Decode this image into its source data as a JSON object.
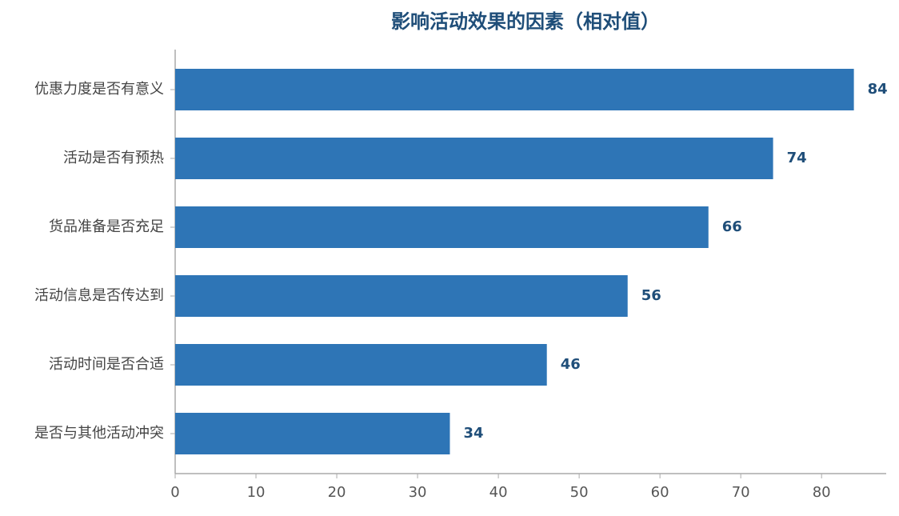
{
  "chart_data": {
    "type": "barh",
    "title": "影响活动效果的因素（相对值）",
    "categories": [
      "优惠力度是否有意义",
      "活动是否有预热",
      "货品准备是否充足",
      "活动信息是否传达到",
      "活动时间是否合适",
      "是否与其他活动冲突"
    ],
    "values": [
      84,
      74,
      66,
      56,
      46,
      34
    ],
    "color": "#2e75b6",
    "label_color": "#1f4e79",
    "title_color": "#1f4e79",
    "xlim": [
      0,
      88
    ],
    "xticks": [
      0,
      10,
      20,
      30,
      40,
      50,
      60,
      70,
      80
    ],
    "grid": false
  }
}
